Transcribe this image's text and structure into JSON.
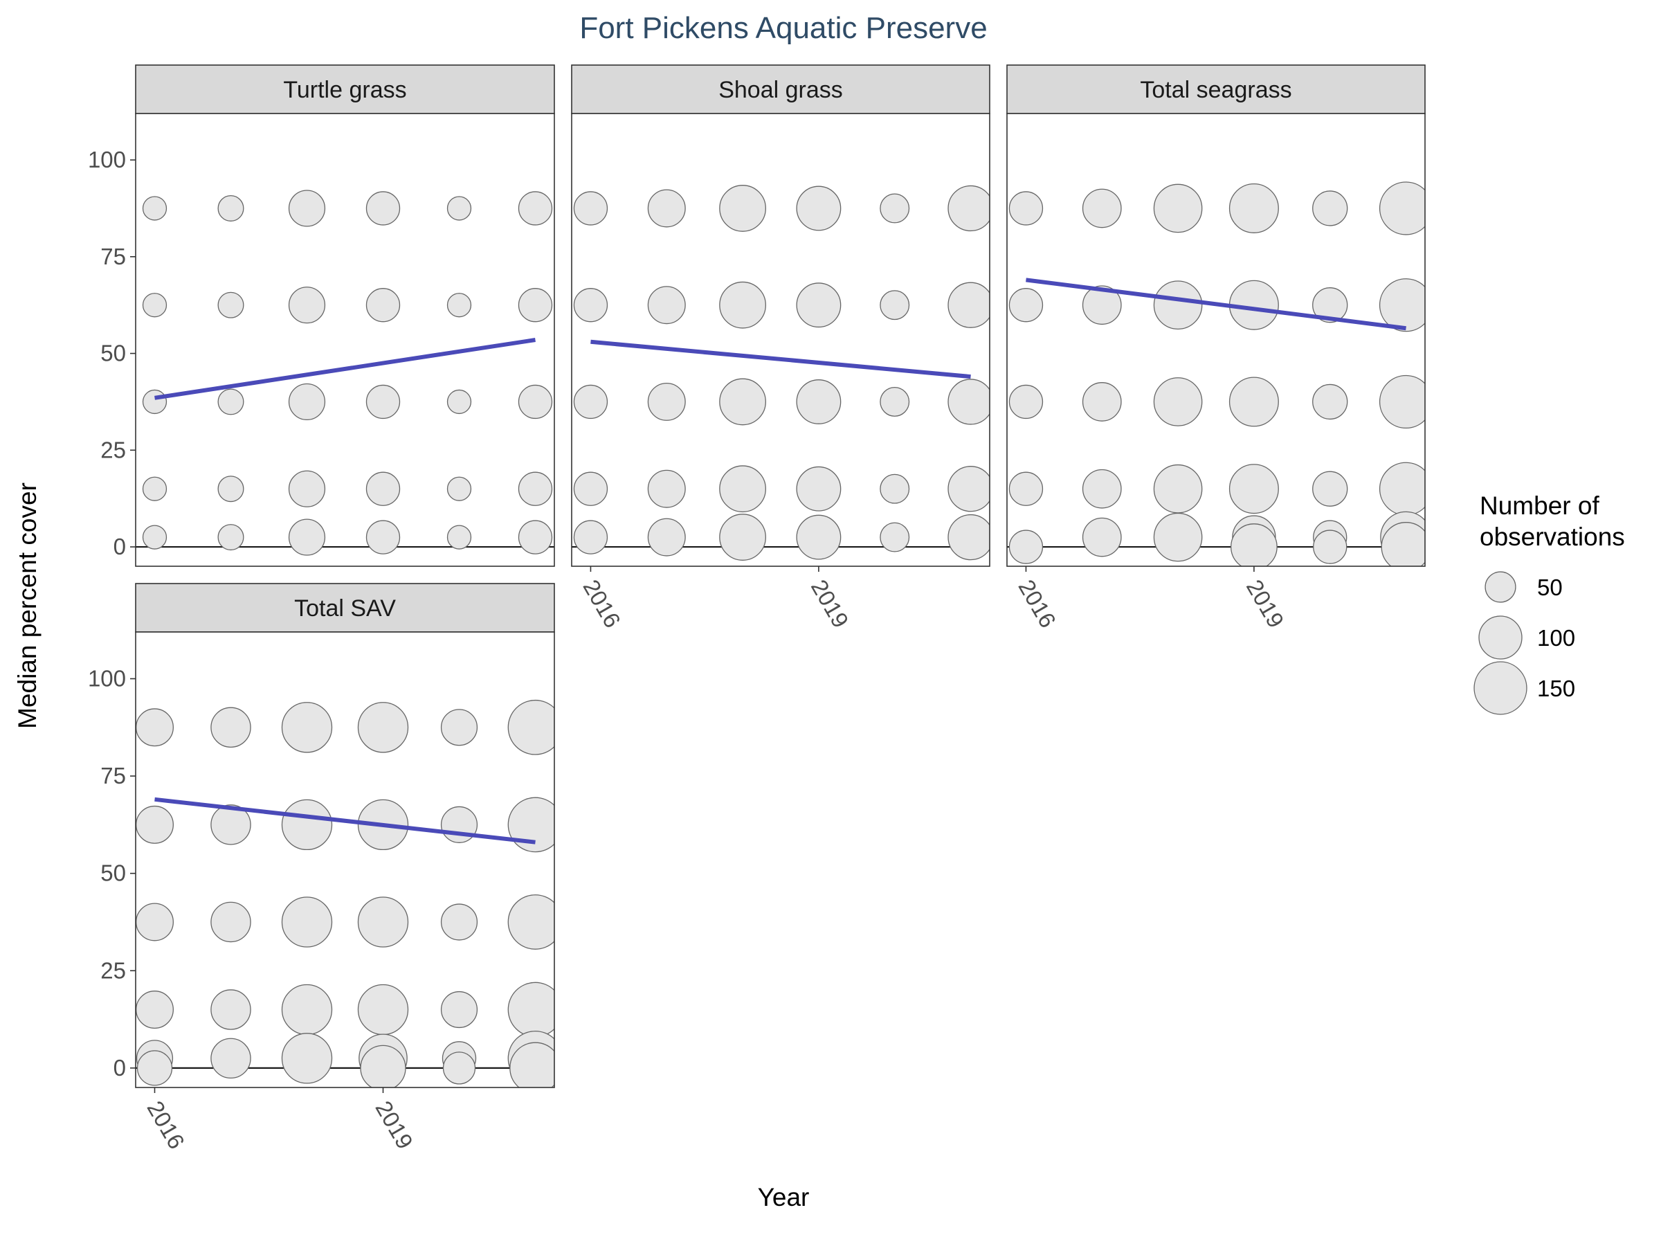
{
  "chart_data": {
    "type": "scatter",
    "title": "Fort Pickens Aquatic Preserve",
    "xlabel": "Year",
    "ylabel": "Median percent cover",
    "ylim": [
      -5,
      112
    ],
    "xlim": [
      2015.75,
      2021.25
    ],
    "y_ticks": [
      0,
      25,
      50,
      75,
      100
    ],
    "x_ticks": [
      2016,
      2019
    ],
    "x_tick_labels": [
      "2016",
      "2019"
    ],
    "years": [
      2016,
      2017,
      2018,
      2019,
      2020,
      2021
    ],
    "reference_line_y": 0,
    "colors": {
      "bubble_fill": "#e6e6e6",
      "bubble_stroke": "#666666",
      "trend_line": "#4a4ab8",
      "strip_fill": "#d9d9d9",
      "title": "#2f4b66"
    },
    "legend": {
      "title": "Number of observations",
      "title_lines": [
        "Number of",
        "observations"
      ],
      "placement": "right",
      "entries": [
        {
          "label": "50",
          "n": 50
        },
        {
          "label": "100",
          "n": 100
        },
        {
          "label": "150",
          "n": 150
        }
      ]
    },
    "facets": [
      {
        "label": "Turtle grass",
        "trend": {
          "x": [
            2016,
            2021
          ],
          "y": [
            38.5,
            53.5
          ]
        },
        "points": [
          {
            "x": 2016,
            "y": 87.5,
            "n": 30
          },
          {
            "x": 2017,
            "y": 87.5,
            "n": 35
          },
          {
            "x": 2018,
            "y": 87.5,
            "n": 70
          },
          {
            "x": 2019,
            "y": 87.5,
            "n": 60
          },
          {
            "x": 2020,
            "y": 87.5,
            "n": 30
          },
          {
            "x": 2021,
            "y": 87.5,
            "n": 60
          },
          {
            "x": 2016,
            "y": 62.5,
            "n": 30
          },
          {
            "x": 2017,
            "y": 62.5,
            "n": 35
          },
          {
            "x": 2018,
            "y": 62.5,
            "n": 70
          },
          {
            "x": 2019,
            "y": 62.5,
            "n": 60
          },
          {
            "x": 2020,
            "y": 62.5,
            "n": 30
          },
          {
            "x": 2021,
            "y": 62.5,
            "n": 60
          },
          {
            "x": 2016,
            "y": 37.5,
            "n": 30
          },
          {
            "x": 2017,
            "y": 37.5,
            "n": 35
          },
          {
            "x": 2018,
            "y": 37.5,
            "n": 70
          },
          {
            "x": 2019,
            "y": 37.5,
            "n": 60
          },
          {
            "x": 2020,
            "y": 37.5,
            "n": 30
          },
          {
            "x": 2021,
            "y": 37.5,
            "n": 60
          },
          {
            "x": 2016,
            "y": 15,
            "n": 30
          },
          {
            "x": 2017,
            "y": 15,
            "n": 35
          },
          {
            "x": 2018,
            "y": 15,
            "n": 70
          },
          {
            "x": 2019,
            "y": 15,
            "n": 60
          },
          {
            "x": 2020,
            "y": 15,
            "n": 30
          },
          {
            "x": 2021,
            "y": 15,
            "n": 60
          },
          {
            "x": 2016,
            "y": 2.5,
            "n": 30
          },
          {
            "x": 2017,
            "y": 2.5,
            "n": 35
          },
          {
            "x": 2018,
            "y": 2.5,
            "n": 70
          },
          {
            "x": 2019,
            "y": 2.5,
            "n": 60
          },
          {
            "x": 2020,
            "y": 2.5,
            "n": 30
          },
          {
            "x": 2021,
            "y": 2.5,
            "n": 60
          }
        ]
      },
      {
        "label": "Shoal grass",
        "trend": {
          "x": [
            2016,
            2021
          ],
          "y": [
            53,
            44
          ]
        },
        "points": [
          {
            "x": 2016,
            "y": 87.5,
            "n": 60
          },
          {
            "x": 2017,
            "y": 87.5,
            "n": 75
          },
          {
            "x": 2018,
            "y": 87.5,
            "n": 115
          },
          {
            "x": 2019,
            "y": 87.5,
            "n": 105
          },
          {
            "x": 2020,
            "y": 87.5,
            "n": 45
          },
          {
            "x": 2021,
            "y": 87.5,
            "n": 110
          },
          {
            "x": 2016,
            "y": 62.5,
            "n": 60
          },
          {
            "x": 2017,
            "y": 62.5,
            "n": 75
          },
          {
            "x": 2018,
            "y": 62.5,
            "n": 115
          },
          {
            "x": 2019,
            "y": 62.5,
            "n": 105
          },
          {
            "x": 2020,
            "y": 62.5,
            "n": 45
          },
          {
            "x": 2021,
            "y": 62.5,
            "n": 110
          },
          {
            "x": 2016,
            "y": 37.5,
            "n": 60
          },
          {
            "x": 2017,
            "y": 37.5,
            "n": 75
          },
          {
            "x": 2018,
            "y": 37.5,
            "n": 115
          },
          {
            "x": 2019,
            "y": 37.5,
            "n": 105
          },
          {
            "x": 2020,
            "y": 37.5,
            "n": 45
          },
          {
            "x": 2021,
            "y": 37.5,
            "n": 110
          },
          {
            "x": 2016,
            "y": 15,
            "n": 60
          },
          {
            "x": 2017,
            "y": 15,
            "n": 75
          },
          {
            "x": 2018,
            "y": 15,
            "n": 115
          },
          {
            "x": 2019,
            "y": 15,
            "n": 105
          },
          {
            "x": 2020,
            "y": 15,
            "n": 45
          },
          {
            "x": 2021,
            "y": 15,
            "n": 110
          },
          {
            "x": 2016,
            "y": 2.5,
            "n": 60
          },
          {
            "x": 2017,
            "y": 2.5,
            "n": 75
          },
          {
            "x": 2018,
            "y": 2.5,
            "n": 115
          },
          {
            "x": 2019,
            "y": 2.5,
            "n": 105
          },
          {
            "x": 2020,
            "y": 2.5,
            "n": 45
          },
          {
            "x": 2021,
            "y": 2.5,
            "n": 110
          }
        ]
      },
      {
        "label": "Total seagrass",
        "trend": {
          "x": [
            2016,
            2021
          ],
          "y": [
            69,
            56.5
          ]
        },
        "points": [
          {
            "x": 2016,
            "y": 87.5,
            "n": 60
          },
          {
            "x": 2017,
            "y": 87.5,
            "n": 80
          },
          {
            "x": 2018,
            "y": 87.5,
            "n": 125
          },
          {
            "x": 2019,
            "y": 87.5,
            "n": 130
          },
          {
            "x": 2020,
            "y": 87.5,
            "n": 65
          },
          {
            "x": 2021,
            "y": 87.5,
            "n": 150
          },
          {
            "x": 2016,
            "y": 62.5,
            "n": 60
          },
          {
            "x": 2017,
            "y": 62.5,
            "n": 80
          },
          {
            "x": 2018,
            "y": 62.5,
            "n": 125
          },
          {
            "x": 2019,
            "y": 62.5,
            "n": 130
          },
          {
            "x": 2020,
            "y": 62.5,
            "n": 65
          },
          {
            "x": 2021,
            "y": 62.5,
            "n": 150
          },
          {
            "x": 2016,
            "y": 37.5,
            "n": 60
          },
          {
            "x": 2017,
            "y": 37.5,
            "n": 80
          },
          {
            "x": 2018,
            "y": 37.5,
            "n": 125
          },
          {
            "x": 2019,
            "y": 37.5,
            "n": 130
          },
          {
            "x": 2020,
            "y": 37.5,
            "n": 65
          },
          {
            "x": 2021,
            "y": 37.5,
            "n": 150
          },
          {
            "x": 2016,
            "y": 15,
            "n": 60
          },
          {
            "x": 2017,
            "y": 15,
            "n": 80
          },
          {
            "x": 2018,
            "y": 15,
            "n": 125
          },
          {
            "x": 2019,
            "y": 15,
            "n": 130
          },
          {
            "x": 2020,
            "y": 15,
            "n": 65
          },
          {
            "x": 2021,
            "y": 15,
            "n": 150
          },
          {
            "x": 2016,
            "y": 0,
            "n": 60
          },
          {
            "x": 2017,
            "y": 2.5,
            "n": 80
          },
          {
            "x": 2018,
            "y": 2.5,
            "n": 125
          },
          {
            "x": 2019,
            "y": 2.5,
            "n": 100
          },
          {
            "x": 2019,
            "y": 0,
            "n": 115
          },
          {
            "x": 2020,
            "y": 2.5,
            "n": 60
          },
          {
            "x": 2020,
            "y": 0,
            "n": 60
          },
          {
            "x": 2021,
            "y": 2.5,
            "n": 140
          },
          {
            "x": 2021,
            "y": 0,
            "n": 130
          }
        ]
      },
      {
        "label": "Total SAV",
        "trend": {
          "x": [
            2016,
            2021
          ],
          "y": [
            69,
            58
          ]
        },
        "points": [
          {
            "x": 2016,
            "y": 87.5,
            "n": 75
          },
          {
            "x": 2017,
            "y": 87.5,
            "n": 85
          },
          {
            "x": 2018,
            "y": 87.5,
            "n": 135
          },
          {
            "x": 2019,
            "y": 87.5,
            "n": 135
          },
          {
            "x": 2020,
            "y": 87.5,
            "n": 70
          },
          {
            "x": 2021,
            "y": 87.5,
            "n": 160
          },
          {
            "x": 2016,
            "y": 62.5,
            "n": 75
          },
          {
            "x": 2017,
            "y": 62.5,
            "n": 85
          },
          {
            "x": 2018,
            "y": 62.5,
            "n": 135
          },
          {
            "x": 2019,
            "y": 62.5,
            "n": 135
          },
          {
            "x": 2020,
            "y": 62.5,
            "n": 70
          },
          {
            "x": 2021,
            "y": 62.5,
            "n": 160
          },
          {
            "x": 2016,
            "y": 37.5,
            "n": 75
          },
          {
            "x": 2017,
            "y": 37.5,
            "n": 85
          },
          {
            "x": 2018,
            "y": 37.5,
            "n": 135
          },
          {
            "x": 2019,
            "y": 37.5,
            "n": 135
          },
          {
            "x": 2020,
            "y": 37.5,
            "n": 70
          },
          {
            "x": 2021,
            "y": 37.5,
            "n": 160
          },
          {
            "x": 2016,
            "y": 15,
            "n": 75
          },
          {
            "x": 2017,
            "y": 15,
            "n": 85
          },
          {
            "x": 2018,
            "y": 15,
            "n": 135
          },
          {
            "x": 2019,
            "y": 15,
            "n": 135
          },
          {
            "x": 2020,
            "y": 15,
            "n": 70
          },
          {
            "x": 2021,
            "y": 15,
            "n": 160
          },
          {
            "x": 2016,
            "y": 2.5,
            "n": 70
          },
          {
            "x": 2016,
            "y": 0,
            "n": 65
          },
          {
            "x": 2017,
            "y": 2.5,
            "n": 85
          },
          {
            "x": 2018,
            "y": 2.5,
            "n": 135
          },
          {
            "x": 2019,
            "y": 2.5,
            "n": 125
          },
          {
            "x": 2019,
            "y": 0,
            "n": 110
          },
          {
            "x": 2020,
            "y": 2.5,
            "n": 60
          },
          {
            "x": 2020,
            "y": 0,
            "n": 55
          },
          {
            "x": 2021,
            "y": 2.5,
            "n": 160
          },
          {
            "x": 2021,
            "y": 0,
            "n": 140
          }
        ]
      }
    ]
  }
}
